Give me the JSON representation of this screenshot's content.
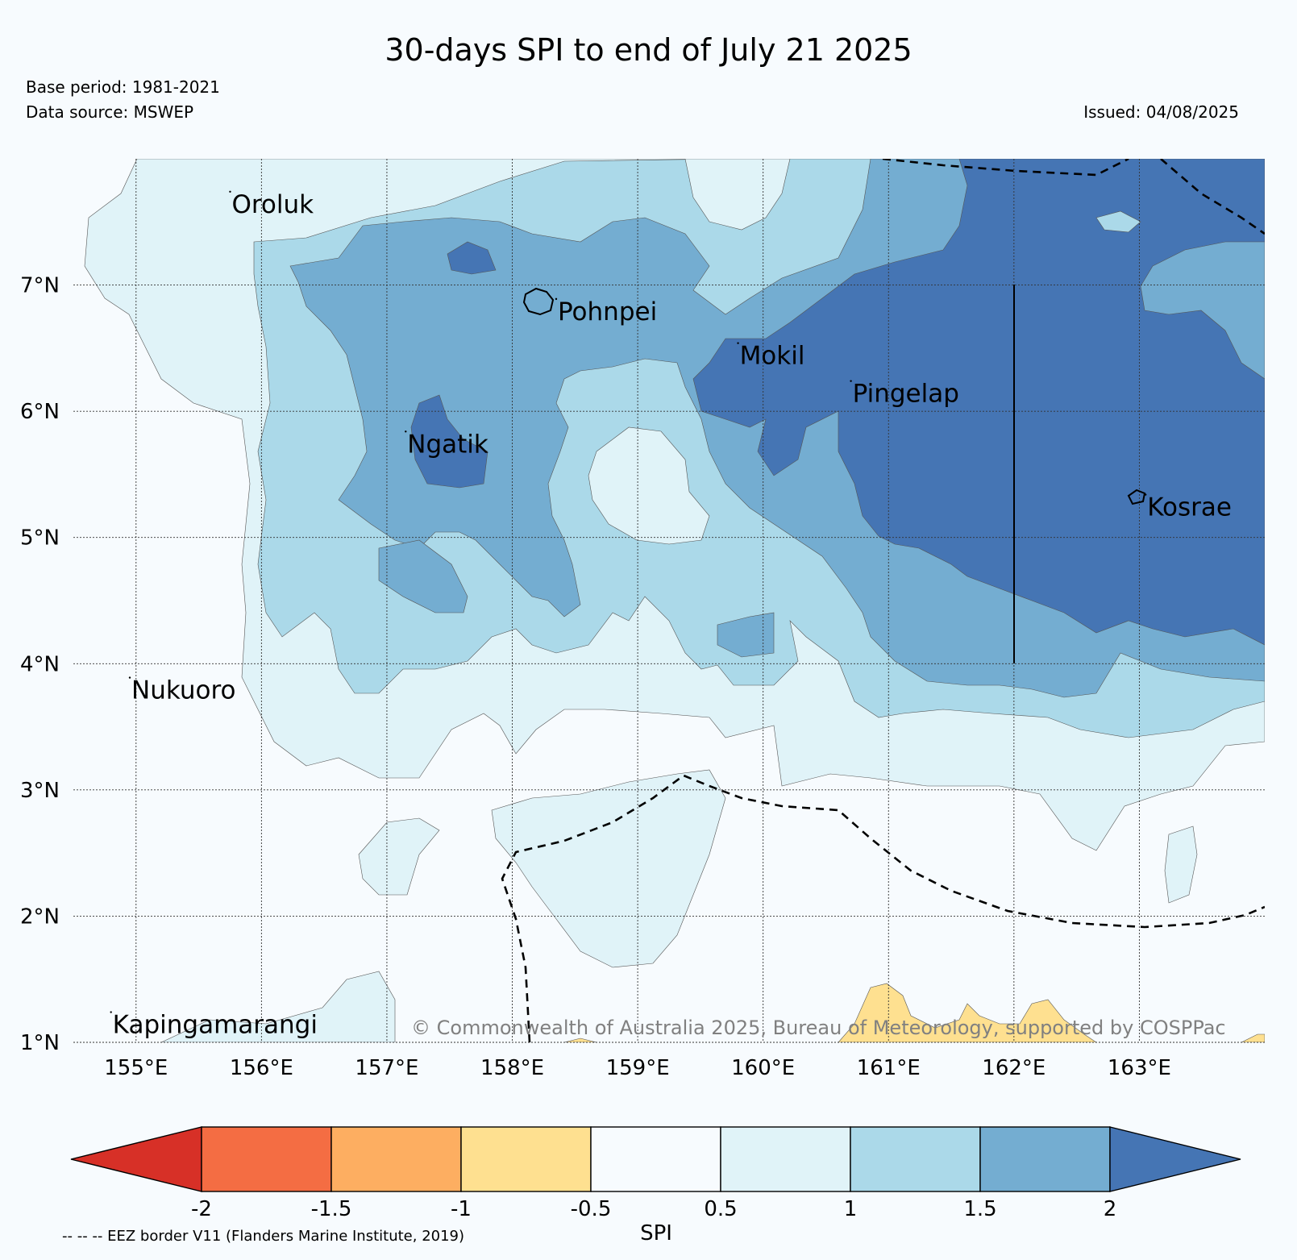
{
  "title": "30-days SPI to end of July 21 2025",
  "base_period": "Base period: 1981-2021",
  "data_source": "Data source: MSWEP",
  "issued": "Issued: 04/08/2025",
  "copyright": "© Commonwealth of Australia 2025, Bureau of Meteorology, supported by COSPPac",
  "eez_note": "-- -- -- EEZ border V11 (Flanders Marine Institute, 2019)",
  "map": {
    "lon_range": [
      154.5,
      164.0
    ],
    "lat_range": [
      1.0,
      8.0
    ],
    "lon_ticks": [
      {
        "value": 155,
        "label": "155°E"
      },
      {
        "value": 156,
        "label": "156°E"
      },
      {
        "value": 157,
        "label": "157°E"
      },
      {
        "value": 158,
        "label": "158°E"
      },
      {
        "value": 159,
        "label": "159°E"
      },
      {
        "value": 160,
        "label": "160°E"
      },
      {
        "value": 161,
        "label": "161°E"
      },
      {
        "value": 162,
        "label": "162°E"
      },
      {
        "value": 163,
        "label": "163°E"
      }
    ],
    "lat_ticks": [
      {
        "value": 7,
        "label": "7°N"
      },
      {
        "value": 6,
        "label": "6°N"
      },
      {
        "value": 5,
        "label": "5°N"
      },
      {
        "value": 4,
        "label": "4°N"
      },
      {
        "value": 3,
        "label": "3°N"
      },
      {
        "value": 2,
        "label": "2°N"
      },
      {
        "value": 1,
        "label": "1°N"
      }
    ],
    "places": [
      {
        "name": "Oroluk",
        "lon": 155.75,
        "lat": 7.65
      },
      {
        "name": "Pohnpei",
        "lon": 158.35,
        "lat": 6.8
      },
      {
        "name": "Mokil",
        "lon": 159.8,
        "lat": 6.45
      },
      {
        "name": "Pingelap",
        "lon": 160.7,
        "lat": 6.15
      },
      {
        "name": "Ngatik",
        "lon": 157.15,
        "lat": 5.75
      },
      {
        "name": "Kosrae",
        "lon": 163.05,
        "lat": 5.25
      },
      {
        "name": "Nukuoro",
        "lon": 154.95,
        "lat": 3.8
      },
      {
        "name": "Kapingamarangi",
        "lon": 154.8,
        "lat": 1.15
      }
    ]
  },
  "colorbar": {
    "label": "SPI",
    "ticks": [
      "-2",
      "-1.5",
      "-1",
      "-0.5",
      "0.5",
      "1",
      "1.5",
      "2"
    ],
    "colors": {
      "lt_-2": "#d73027",
      "-2_-1.5": "#f46d43",
      "-1.5_-1": "#fdae61",
      "-1_-0.5": "#fee090",
      "-0.5_0.5": "#f7fbfe",
      "0.5_1": "#e0f3f8",
      "1_1.5": "#abd9e9",
      "1.5_2": "#74add1",
      "gt_2": "#4575b4"
    }
  }
}
